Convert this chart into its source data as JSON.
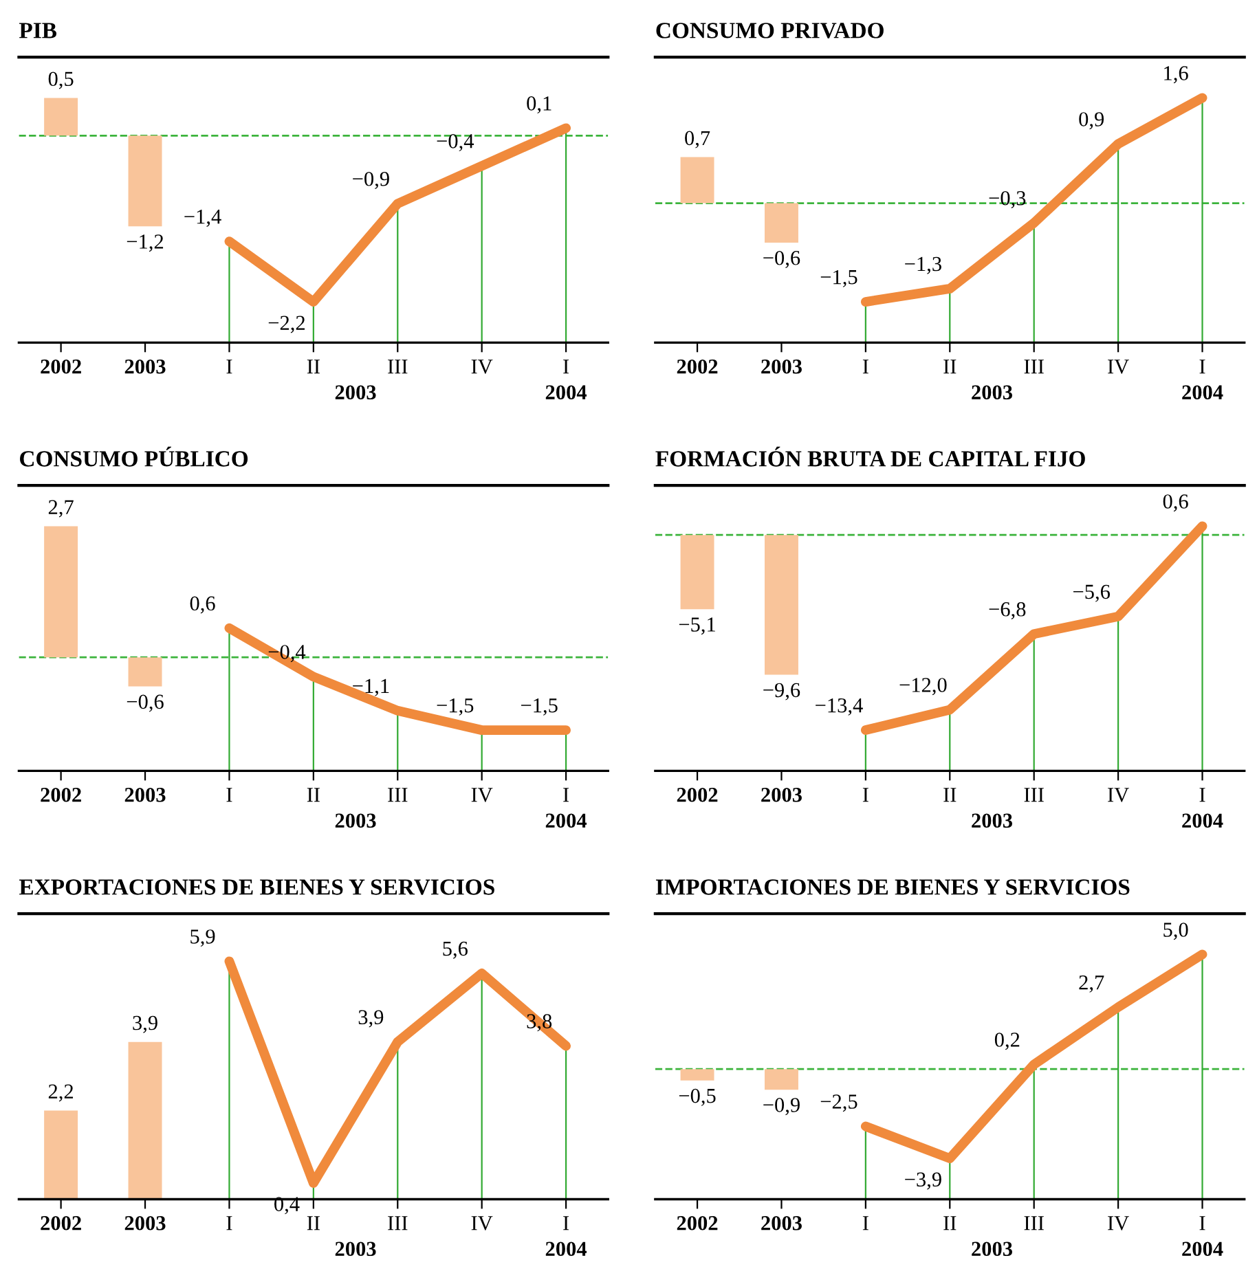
{
  "chart_data": [
    {
      "type": "bar",
      "title": "PIB",
      "categories": [
        "2002",
        "2003",
        "I",
        "II",
        "III",
        "IV",
        "I"
      ],
      "tick_labels": "x",
      "annotations": [
        "2003",
        "2004"
      ],
      "ref_lines": [
        {
          "axis": "y",
          "value": 0,
          "color": "#3cb43c",
          "line_style": "dashed"
        }
      ],
      "series": [
        {
          "color": "#f9c49a",
          "values": [
            0.5,
            -1.2,
            null,
            null,
            null,
            null,
            null
          ],
          "value_labels": [
            "0,5",
            "−1,2",
            null,
            null,
            null,
            null,
            null
          ]
        },
        {
          "type": "line",
          "color": "#f08a3c",
          "values": [
            null,
            null,
            -1.4,
            -2.2,
            -0.9,
            -0.4,
            0.1
          ],
          "value_labels": [
            null,
            null,
            "−1,4",
            "−2,2",
            "−0,9",
            "−0,4",
            "0,1"
          ]
        }
      ]
    },
    {
      "type": "bar",
      "title": "CONSUMO PRIVADO",
      "categories": [
        "2002",
        "2003",
        "I",
        "II",
        "III",
        "IV",
        "I"
      ],
      "tick_labels": "x",
      "annotations": [
        "2003",
        "2004"
      ],
      "ref_lines": [
        {
          "axis": "y",
          "value": 0,
          "color": "#3cb43c",
          "line_style": "dashed"
        }
      ],
      "series": [
        {
          "color": "#f9c49a",
          "values": [
            0.7,
            -0.6,
            null,
            null,
            null,
            null,
            null
          ],
          "value_labels": [
            "0,7",
            "−0,6",
            null,
            null,
            null,
            null,
            null
          ]
        },
        {
          "type": "line",
          "color": "#f08a3c",
          "values": [
            null,
            null,
            -1.5,
            -1.3,
            -0.3,
            0.9,
            1.6
          ],
          "value_labels": [
            null,
            null,
            "−1,5",
            "−1,3",
            "−0,3",
            "0,9",
            "1,6"
          ]
        }
      ]
    },
    {
      "type": "bar",
      "title": "CONSUMO PÚBLICO",
      "categories": [
        "2002",
        "2003",
        "I",
        "II",
        "III",
        "IV",
        "I"
      ],
      "tick_labels": "x",
      "annotations": [
        "2003",
        "2004"
      ],
      "ref_lines": [
        {
          "axis": "y",
          "value": 0,
          "color": "#3cb43c",
          "line_style": "dashed"
        }
      ],
      "series": [
        {
          "color": "#f9c49a",
          "values": [
            2.7,
            -0.6,
            null,
            null,
            null,
            null,
            null
          ],
          "value_labels": [
            "2,7",
            "−0,6",
            null,
            null,
            null,
            null,
            null
          ]
        },
        {
          "type": "line",
          "color": "#f08a3c",
          "values": [
            null,
            null,
            0.6,
            -0.4,
            -1.1,
            -1.5,
            -1.5
          ],
          "value_labels": [
            null,
            null,
            "0,6",
            "−0,4",
            "−1,1",
            "−1,5",
            "−1,5"
          ]
        }
      ]
    },
    {
      "type": "bar",
      "title": "FORMACIÓN BRUTA DE CAPITAL FIJO",
      "categories": [
        "2002",
        "2003",
        "I",
        "II",
        "III",
        "IV",
        "I"
      ],
      "tick_labels": "x",
      "annotations": [
        "2003",
        "2004"
      ],
      "ref_lines": [
        {
          "axis": "y",
          "value": 0,
          "color": "#3cb43c",
          "line_style": "dashed"
        }
      ],
      "series": [
        {
          "color": "#f9c49a",
          "values": [
            -5.1,
            -9.6,
            null,
            null,
            null,
            null,
            null
          ],
          "value_labels": [
            "−5,1",
            "−9,6",
            null,
            null,
            null,
            null,
            null
          ]
        },
        {
          "type": "line",
          "color": "#f08a3c",
          "values": [
            null,
            null,
            -13.4,
            -12.0,
            -6.8,
            -5.6,
            0.6
          ],
          "value_labels": [
            null,
            null,
            "−13,4",
            "−12,0",
            "−6,8",
            "−5,6",
            "0,6"
          ]
        }
      ]
    },
    {
      "type": "bar",
      "title": "EXPORTACIONES DE BIENES Y SERVICIOS",
      "categories": [
        "2002",
        "2003",
        "I",
        "II",
        "III",
        "IV",
        "I"
      ],
      "tick_labels": "x",
      "annotations": [
        "2003",
        "2004"
      ],
      "series": [
        {
          "color": "#f9c49a",
          "values": [
            2.2,
            3.9,
            null,
            null,
            null,
            null,
            null
          ],
          "value_labels": [
            "2,2",
            "3,9",
            null,
            null,
            null,
            null,
            null
          ]
        },
        {
          "type": "line",
          "color": "#f08a3c",
          "values": [
            null,
            null,
            5.9,
            0.4,
            3.9,
            5.6,
            3.8
          ],
          "value_labels": [
            null,
            null,
            "5,9",
            "0,4",
            "3,9",
            "5,6",
            "3,8"
          ]
        }
      ]
    },
    {
      "type": "bar",
      "title": "IMPORTACIONES DE BIENES Y SERVICIOS",
      "categories": [
        "2002",
        "2003",
        "I",
        "II",
        "III",
        "IV",
        "I"
      ],
      "tick_labels": "x",
      "annotations": [
        "2003",
        "2004"
      ],
      "ref_lines": [
        {
          "axis": "y",
          "value": 0,
          "color": "#3cb43c",
          "line_style": "dashed"
        }
      ],
      "series": [
        {
          "color": "#f9c49a",
          "values": [
            -0.5,
            -0.9,
            null,
            null,
            null,
            null,
            null
          ],
          "value_labels": [
            "−0,5",
            "−0,9",
            null,
            null,
            null,
            null,
            null
          ]
        },
        {
          "type": "line",
          "color": "#f08a3c",
          "values": [
            null,
            null,
            -2.5,
            -3.9,
            0.2,
            2.7,
            5.0
          ],
          "value_labels": [
            null,
            null,
            "−2,5",
            "−3,9",
            "0,2",
            "2,7",
            "5,0"
          ]
        }
      ]
    }
  ]
}
